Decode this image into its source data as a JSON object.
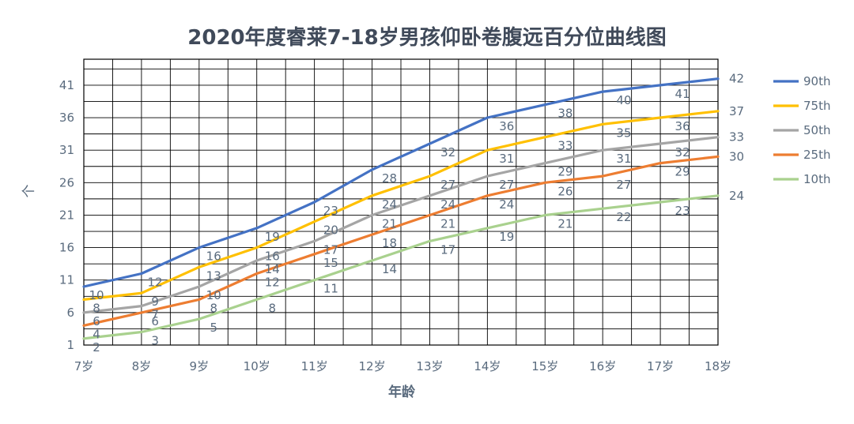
{
  "chart_data": {
    "type": "line",
    "title": "2020年度睿莱7-18岁男孩仰卧卷腹远百分位曲线图",
    "xlabel": "年龄",
    "ylabel": "个",
    "categories": [
      "7岁",
      "8岁",
      "9岁",
      "10岁",
      "11岁",
      "12岁",
      "13岁",
      "14岁",
      "15岁",
      "16岁",
      "17岁",
      "18岁"
    ],
    "x_minor_divisions": 2,
    "ylim": [
      1,
      45
    ],
    "yticks": [
      "1",
      "6",
      "11",
      "16",
      "21",
      "26",
      "31",
      "36",
      "41"
    ],
    "grid": true,
    "legend_position": "right",
    "series": [
      {
        "name": "90th",
        "color": "#4472c4",
        "values": [
          10,
          12,
          16,
          19,
          23,
          28,
          32,
          36,
          38,
          40,
          41,
          42
        ],
        "labels": [
          "10",
          "12",
          "16",
          "19",
          "23",
          "28",
          "32",
          "36",
          "38",
          "40",
          "41",
          "42"
        ]
      },
      {
        "name": "75th",
        "color": "#ffc000",
        "values": [
          8,
          9,
          13,
          16,
          20,
          24,
          27,
          31,
          33,
          35,
          36,
          37
        ],
        "labels": [
          "8",
          "9",
          "13",
          "16",
          "20",
          "24",
          "27",
          "31",
          "33",
          "35",
          "36",
          "37"
        ]
      },
      {
        "name": "50th",
        "color": "#a5a5a5",
        "values": [
          6,
          7,
          10,
          14,
          17,
          21,
          24,
          27,
          29,
          31,
          32,
          33
        ],
        "labels": [
          "6",
          "7",
          "10",
          "14",
          "17",
          "21",
          "24",
          "27",
          "29",
          "31",
          "32",
          "33"
        ]
      },
      {
        "name": "25th",
        "color": "#ed7d31",
        "values": [
          4,
          6,
          8,
          12,
          15,
          18,
          21,
          24,
          26,
          27,
          29,
          30
        ],
        "labels": [
          "4",
          "6",
          "8",
          "12",
          "15",
          "18",
          "21",
          "24",
          "26",
          "27",
          "29",
          "30"
        ]
      },
      {
        "name": "10th",
        "color": "#a9d18e",
        "values": [
          2,
          3,
          5,
          8,
          11,
          14,
          17,
          19,
          21,
          22,
          23,
          24
        ],
        "labels": [
          "2",
          "3",
          "5",
          "8",
          "11",
          "14",
          "17",
          "19",
          "21",
          "22",
          "23",
          "24"
        ]
      }
    ]
  }
}
